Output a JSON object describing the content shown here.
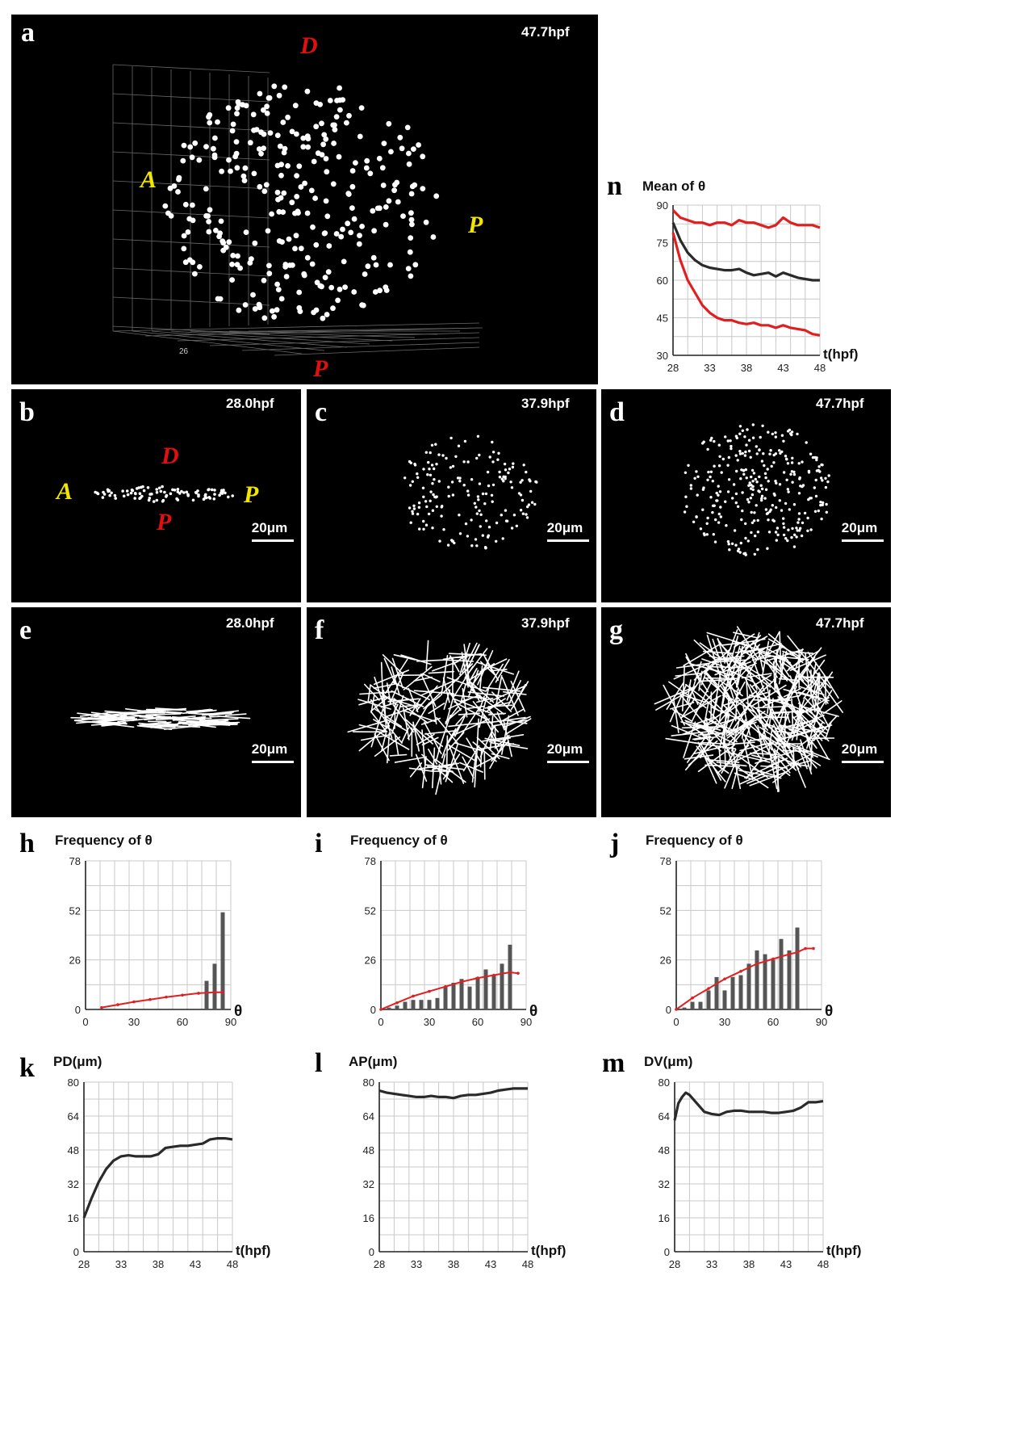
{
  "panels": {
    "a": {
      "label": "a",
      "time": "47.7hpf",
      "axis_tick": "26",
      "D": "D",
      "A": "A",
      "P_right": "P",
      "P_bottom": "P"
    },
    "b": {
      "label": "b",
      "time": "28.0hpf",
      "D": "D",
      "A": "A",
      "P_right": "P",
      "P_bottom": "P",
      "scale": "20μm"
    },
    "c": {
      "label": "c",
      "time": "37.9hpf",
      "scale": "20μm"
    },
    "d": {
      "label": "d",
      "time": "47.7hpf",
      "scale": "20μm"
    },
    "e": {
      "label": "e",
      "time": "28.0hpf",
      "scale": "20μm"
    },
    "f": {
      "label": "f",
      "time": "37.9hpf",
      "scale": "20μm"
    },
    "g": {
      "label": "g",
      "time": "47.7hpf",
      "scale": "20μm"
    },
    "h": {
      "label": "h"
    },
    "i": {
      "label": "i"
    },
    "j": {
      "label": "j"
    },
    "k": {
      "label": "k"
    },
    "l": {
      "label": "l"
    },
    "m": {
      "label": "m"
    },
    "n": {
      "label": "n"
    }
  },
  "colors": {
    "label_red": "#e01010",
    "label_yellow": "#f2e600",
    "line_red": "#e02020",
    "line_dark": "#2a2a2a",
    "bar": "#555555"
  },
  "chart_data": [
    {
      "id": "h",
      "type": "bar",
      "title": "Frequency of θ",
      "xlabel": "θ",
      "xlim": [
        0,
        90
      ],
      "ylim": [
        0,
        78
      ],
      "x_ticks": [
        "0",
        "30",
        "60",
        "90"
      ],
      "y_ticks": [
        "0",
        "26",
        "52",
        "78"
      ],
      "bars": {
        "x": [
          75,
          80,
          85
        ],
        "values": [
          15,
          24,
          51
        ]
      },
      "line": {
        "x": [
          10,
          20,
          30,
          40,
          50,
          60,
          70,
          80,
          85
        ],
        "y": [
          1,
          2.5,
          4,
          5.2,
          6.5,
          7.5,
          8.5,
          9,
          9
        ]
      }
    },
    {
      "id": "i",
      "type": "bar",
      "title": "Frequency of θ",
      "xlabel": "θ",
      "xlim": [
        0,
        90
      ],
      "ylim": [
        0,
        78
      ],
      "x_ticks": [
        "0",
        "30",
        "60",
        "90"
      ],
      "y_ticks": [
        "0",
        "26",
        "52",
        "78"
      ],
      "bars": {
        "x": [
          5,
          10,
          15,
          20,
          25,
          30,
          35,
          40,
          45,
          50,
          55,
          60,
          65,
          70,
          75,
          80,
          85
        ],
        "values": [
          1,
          2,
          4,
          5,
          5,
          5,
          6,
          12,
          14,
          16,
          12,
          17,
          21,
          18,
          24,
          34,
          0
        ]
      },
      "line": {
        "x": [
          0,
          10,
          20,
          30,
          40,
          50,
          60,
          70,
          80,
          85
        ],
        "y": [
          0,
          3.5,
          7,
          9.5,
          12,
          14.5,
          16.5,
          18,
          19.5,
          19
        ]
      }
    },
    {
      "id": "j",
      "type": "bar",
      "title": "Frequency of θ",
      "xlabel": "θ",
      "xlim": [
        0,
        90
      ],
      "ylim": [
        0,
        78
      ],
      "x_ticks": [
        "0",
        "30",
        "60",
        "90"
      ],
      "y_ticks": [
        "0",
        "26",
        "52",
        "78"
      ],
      "bars": {
        "x": [
          5,
          10,
          15,
          20,
          25,
          30,
          35,
          40,
          45,
          50,
          55,
          60,
          65,
          70,
          75,
          80,
          85
        ],
        "values": [
          1,
          4,
          4,
          10,
          17,
          10,
          17,
          18,
          24,
          31,
          29,
          26,
          37,
          31,
          43,
          0,
          0
        ]
      },
      "line": {
        "x": [
          0,
          10,
          20,
          30,
          40,
          50,
          60,
          70,
          75,
          80,
          85
        ],
        "y": [
          0,
          6,
          11,
          16,
          20,
          24,
          26.5,
          29,
          30,
          32,
          32
        ]
      }
    },
    {
      "id": "k",
      "type": "line",
      "title": "PD(μm)",
      "xlabel": "t(hpf)",
      "xlim": [
        28,
        48
      ],
      "ylim": [
        0,
        80
      ],
      "x_ticks": [
        "28",
        "33",
        "38",
        "43",
        "48"
      ],
      "y_ticks": [
        "0",
        "16",
        "32",
        "48",
        "64",
        "80"
      ],
      "series": [
        {
          "color": "#2a2a2a",
          "x": [
            28,
            29,
            30,
            31,
            32,
            33,
            34,
            35,
            36,
            37,
            38,
            39,
            40,
            41,
            42,
            43,
            44,
            45,
            46,
            47,
            48
          ],
          "y": [
            16,
            25,
            33,
            39,
            43,
            45,
            45.5,
            45,
            45,
            45,
            46,
            49,
            49.5,
            50,
            50,
            50.5,
            51,
            53,
            53.5,
            53.5,
            53
          ]
        }
      ]
    },
    {
      "id": "l",
      "type": "line",
      "title": "AP(μm)",
      "xlabel": "t(hpf)",
      "xlim": [
        28,
        48
      ],
      "ylim": [
        0,
        80
      ],
      "x_ticks": [
        "28",
        "33",
        "38",
        "43",
        "48"
      ],
      "y_ticks": [
        "0",
        "16",
        "32",
        "48",
        "64",
        "80"
      ],
      "series": [
        {
          "color": "#2a2a2a",
          "x": [
            28,
            29,
            30,
            31,
            32,
            33,
            34,
            35,
            36,
            37,
            38,
            39,
            40,
            41,
            42,
            43,
            44,
            45,
            46,
            47,
            48
          ],
          "y": [
            76,
            75,
            74.5,
            74,
            73.5,
            73,
            73,
            73.5,
            73,
            73,
            72.5,
            73.5,
            74,
            74,
            74.5,
            75,
            76,
            76.5,
            77,
            77,
            77
          ]
        }
      ]
    },
    {
      "id": "m",
      "type": "line",
      "title": "DV(μm)",
      "xlabel": "t(hpf)",
      "xlim": [
        28,
        48
      ],
      "ylim": [
        0,
        80
      ],
      "x_ticks": [
        "28",
        "33",
        "38",
        "43",
        "48"
      ],
      "y_ticks": [
        "0",
        "16",
        "32",
        "48",
        "64",
        "80"
      ],
      "series": [
        {
          "color": "#2a2a2a",
          "x": [
            28,
            28.5,
            29,
            29.5,
            30,
            31,
            32,
            33,
            34,
            35,
            36,
            37,
            38,
            39,
            40,
            41,
            42,
            43,
            44,
            45,
            46,
            47,
            48
          ],
          "y": [
            62,
            70,
            73,
            75,
            74,
            70,
            66,
            65,
            64.5,
            66,
            66.5,
            66.5,
            66,
            66,
            66,
            65.5,
            65.5,
            66,
            66.5,
            68,
            70.5,
            70.5,
            71
          ]
        }
      ]
    },
    {
      "id": "n",
      "type": "line",
      "title": "Mean of θ",
      "xlabel": "t(hpf)",
      "xlim": [
        28,
        48
      ],
      "ylim": [
        30,
        90
      ],
      "x_ticks": [
        "28",
        "33",
        "38",
        "43",
        "48"
      ],
      "y_ticks": [
        "30",
        "45",
        "60",
        "75",
        "90"
      ],
      "series": [
        {
          "color": "#e02020",
          "x": [
            28,
            29,
            30,
            31,
            32,
            33,
            34,
            35,
            36,
            37,
            38,
            39,
            40,
            41,
            42,
            43,
            44,
            45,
            46,
            47,
            48
          ],
          "y": [
            88,
            85,
            84,
            83,
            83,
            82,
            83,
            83,
            82,
            84,
            83,
            83,
            82,
            81,
            82,
            85,
            83,
            82,
            82,
            82,
            81
          ]
        },
        {
          "color": "#2a2a2a",
          "x": [
            28,
            29,
            30,
            31,
            32,
            33,
            34,
            35,
            36,
            37,
            38,
            39,
            40,
            41,
            42,
            43,
            44,
            45,
            46,
            47,
            48
          ],
          "y": [
            83,
            76,
            71,
            68,
            66,
            65,
            64.5,
            64,
            64,
            64.5,
            63,
            62,
            62.5,
            63,
            61.5,
            63,
            62,
            61,
            60.5,
            60,
            60
          ]
        },
        {
          "color": "#e02020",
          "x": [
            28,
            29,
            30,
            31,
            32,
            33,
            34,
            35,
            36,
            37,
            38,
            39,
            40,
            41,
            42,
            43,
            44,
            45,
            46,
            47,
            48
          ],
          "y": [
            79,
            68,
            60,
            55,
            50,
            47,
            45,
            44,
            44,
            43,
            42.5,
            43,
            42,
            42,
            41,
            42,
            41,
            40.5,
            40,
            38.5,
            38
          ]
        }
      ]
    }
  ]
}
